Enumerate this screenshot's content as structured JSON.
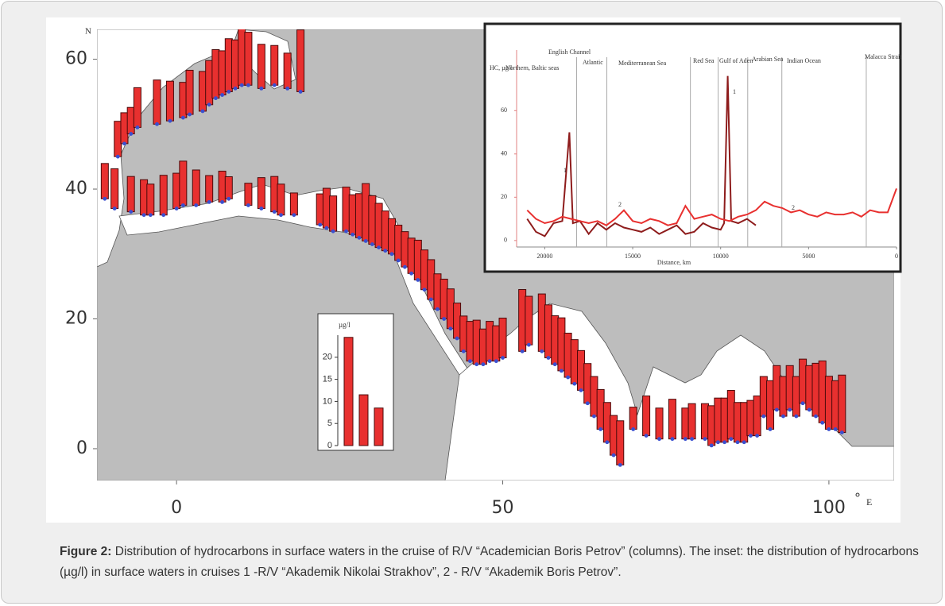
{
  "chart_data": [
    {
      "type": "map",
      "y_label": "N",
      "x_label": "E",
      "degree": "°",
      "xlim": [
        -12.2,
        110
      ],
      "ylim": [
        -4.9,
        64.6
      ],
      "xticks": [
        0,
        50,
        100
      ],
      "yticks": [
        0,
        20,
        40,
        60
      ],
      "bar_color": "#e8302f",
      "dot_color": "#3a4fd0",
      "stations": {
        "lon": [
          -9,
          -8,
          -7,
          -6,
          -3,
          -1,
          1,
          2,
          4,
          5,
          6,
          7,
          8,
          9,
          10,
          11,
          13,
          15,
          17,
          19,
          -11,
          -9.5,
          -7,
          -5,
          -4,
          -2,
          0,
          1,
          3,
          5,
          7,
          8,
          11,
          13,
          15,
          16,
          18,
          22,
          23,
          24,
          26,
          27,
          28,
          29,
          30,
          31,
          32,
          33,
          34,
          35,
          36,
          37,
          38,
          39,
          40,
          41,
          42,
          43,
          44,
          45,
          46,
          47,
          48,
          49,
          50,
          53,
          54,
          56,
          57,
          58,
          59,
          60,
          61,
          62,
          63,
          64,
          65,
          66,
          67,
          68,
          70,
          72,
          74,
          76,
          78,
          79,
          81,
          82,
          83,
          84,
          85,
          86,
          87,
          88,
          89,
          90,
          91,
          92,
          93,
          94,
          95,
          96,
          97,
          98,
          99,
          100,
          101,
          102
        ],
        "lat": [
          45,
          47,
          48.5,
          49.5,
          50,
          50.5,
          51,
          51.5,
          52,
          53,
          54,
          54.5,
          55,
          55.5,
          56,
          56,
          55.5,
          56,
          55.5,
          55,
          38.5,
          37,
          36.5,
          36,
          36,
          36,
          37,
          37.5,
          37.5,
          38,
          38,
          38.5,
          37.5,
          37,
          36.5,
          36,
          36,
          34.5,
          34,
          33.5,
          33.5,
          33,
          32.5,
          32,
          31.5,
          31,
          30.5,
          30,
          29,
          28,
          27,
          26,
          24.5,
          23,
          21.5,
          20,
          18.5,
          17,
          15,
          13.5,
          13,
          13,
          13.5,
          13.5,
          14,
          15,
          16,
          15,
          14,
          13,
          12,
          11,
          10,
          9,
          7,
          5,
          3,
          1,
          -1,
          -2.5,
          3,
          2,
          1.5,
          1.5,
          1.5,
          1.5,
          1.5,
          0.5,
          1,
          1,
          1.5,
          1,
          1,
          2,
          2,
          5,
          3,
          6,
          5,
          6,
          5,
          7,
          6,
          5,
          4,
          3,
          3,
          2.5
        ],
        "values": [
          8,
          7,
          6,
          9,
          10,
          9,
          8,
          10,
          9,
          10,
          11,
          10,
          12,
          11,
          13,
          12,
          10,
          9,
          8,
          14,
          8,
          9,
          8,
          8,
          7,
          9,
          8,
          10,
          8,
          6,
          7,
          5,
          5,
          7,
          8,
          7,
          5,
          7,
          9,
          8,
          10,
          9,
          10,
          13,
          11,
          10,
          9,
          8,
          8,
          8,
          8,
          9,
          9,
          9,
          8,
          9,
          9,
          8,
          8,
          9,
          10,
          8,
          9,
          8,
          9,
          14,
          11,
          13,
          12,
          11,
          12,
          10,
          10,
          9,
          9,
          9,
          9,
          9,
          9,
          10,
          5,
          9,
          7,
          9,
          7,
          8,
          8,
          9,
          10,
          10,
          11,
          9,
          9,
          8,
          9,
          9,
          11,
          10,
          9,
          10,
          9,
          10,
          10,
          12,
          14,
          12,
          11,
          13
        ]
      }
    },
    {
      "type": "bar",
      "title": "µg/l",
      "ylim": [
        0,
        25
      ],
      "yticks": [
        0,
        5,
        10,
        15,
        20
      ],
      "values": [
        24.5,
        11.5,
        8.5
      ],
      "color": "#e8302f"
    },
    {
      "type": "line",
      "y_label": "HC, µg/l",
      "x_label": "Distance, km",
      "xlim": [
        21600,
        0
      ],
      "ylim": [
        -3,
        88
      ],
      "xticks": [
        20000,
        15000,
        10000,
        5000,
        0
      ],
      "yticks": [
        0,
        20,
        40,
        60
      ],
      "regions": [
        "Northern, Baltic seas",
        "English Channel",
        "Atlantic",
        "Mediterranean Sea",
        "Red Sea",
        "Gulf of Aden",
        "Arabian Sea",
        "Indian Ocean",
        "Malacca Strait"
      ],
      "boundaries": [
        18190,
        16470,
        11720,
        10140,
        8460,
        6520,
        1720
      ],
      "series": [
        {
          "name": "1",
          "color": "#8e1c1c",
          "x": [
            21000,
            20500,
            20000,
            19500,
            19000,
            18600,
            18400,
            18000,
            17500,
            17000,
            16500,
            16000,
            15500,
            15000,
            14500,
            14000,
            13500,
            13000,
            12500,
            12000,
            11500,
            11000,
            10500,
            10000,
            9800,
            9600,
            9400,
            9000,
            8500,
            8000
          ],
          "values": [
            10,
            4,
            2,
            8,
            9,
            50,
            8,
            9,
            3,
            8,
            5,
            8,
            6,
            5,
            4,
            6,
            3,
            5,
            7,
            3,
            4,
            8,
            6,
            5,
            8,
            76,
            9,
            8,
            10,
            7
          ]
        },
        {
          "name": "2",
          "color": "#e8302f",
          "x": [
            21000,
            20500,
            20000,
            19500,
            19000,
            18500,
            18000,
            17500,
            17000,
            16500,
            16000,
            15500,
            15000,
            14500,
            14000,
            13500,
            13000,
            12500,
            12000,
            11500,
            11000,
            10500,
            10000,
            9500,
            9000,
            8500,
            8000,
            7500,
            7000,
            6500,
            6000,
            5500,
            5000,
            4500,
            4000,
            3500,
            3000,
            2500,
            2000,
            1500,
            1000,
            500,
            0
          ],
          "values": [
            14,
            10,
            8,
            9,
            11,
            10,
            9,
            8,
            9,
            7,
            10,
            14,
            9,
            8,
            10,
            9,
            7,
            8,
            16,
            10,
            11,
            12,
            10,
            9,
            11,
            12,
            14,
            18,
            16,
            15,
            13,
            14,
            12,
            11,
            13,
            12,
            12,
            13,
            11,
            14,
            13,
            13,
            24
          ]
        }
      ]
    }
  ],
  "caption": {
    "label": "Figure 2:",
    "text": "Distribution of hydrocarbons in surface waters in the cruise of R/V “Academician Boris Petrov” (columns). The inset: the distribution of hydrocarbons (µg/l) in surface waters in cruises 1 -R/V “Akademik Nikolai Strakhov”, 2 - R/V “Akademik Boris Petrov”."
  }
}
